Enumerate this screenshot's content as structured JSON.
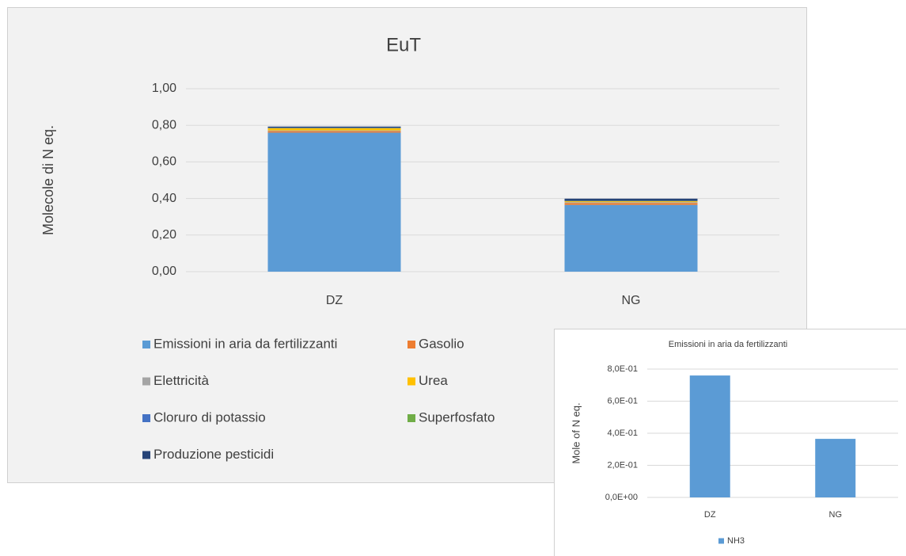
{
  "chart_data": [
    {
      "type": "stacked-bar",
      "title": "EuT",
      "y_label": "Molecole di N eq.",
      "categories": [
        "DZ",
        "NG"
      ],
      "series": [
        {
          "name": "Emissioni in aria da fertilizzanti",
          "color": "#5b9bd5",
          "values": [
            0.76,
            0.365
          ]
        },
        {
          "name": "Gasolio",
          "color": "#ed7d31",
          "values": [
            0.008,
            0.01
          ]
        },
        {
          "name": "Elettricità",
          "color": "#a5a5a5",
          "values": [
            0.004,
            0.005
          ]
        },
        {
          "name": "Urea",
          "color": "#ffc000",
          "values": [
            0.012,
            0.005
          ]
        },
        {
          "name": "Cloruro di potassio",
          "color": "#4472c4",
          "values": [
            0.001,
            0.001
          ]
        },
        {
          "name": "Superfosfato",
          "color": "#70ad47",
          "values": [
            0.001,
            0.001
          ]
        },
        {
          "name": "Produzione pesticidi",
          "color": "#264478",
          "values": [
            0.007,
            0.012
          ]
        }
      ],
      "ylim": [
        0,
        1
      ],
      "yticks": [
        {
          "value": 0,
          "label": "0,00"
        },
        {
          "value": 0.2,
          "label": "0,20"
        },
        {
          "value": 0.4,
          "label": "0,40"
        },
        {
          "value": 0.6,
          "label": "0,60"
        },
        {
          "value": 0.8,
          "label": "0,80"
        },
        {
          "value": 1,
          "label": "1,00"
        }
      ],
      "grid": true,
      "legend": "bottom"
    },
    {
      "type": "bar",
      "title": "Emissioni in aria da fertilizzanti",
      "y_label": "Mole of N eq.",
      "categories": [
        "DZ",
        "NG"
      ],
      "series": [
        {
          "name": "NH3",
          "color": "#5b9bd5",
          "values": [
            0.76,
            0.365
          ]
        }
      ],
      "ylim": [
        0,
        0.8
      ],
      "yticks": [
        {
          "value": 0,
          "label": "0,0E+00"
        },
        {
          "value": 0.2,
          "label": "2,0E-01"
        },
        {
          "value": 0.4,
          "label": "4,0E-01"
        },
        {
          "value": 0.6,
          "label": "6,0E-01"
        },
        {
          "value": 0.8,
          "label": "8,0E-01"
        }
      ],
      "grid": true,
      "legend": "bottom"
    }
  ]
}
